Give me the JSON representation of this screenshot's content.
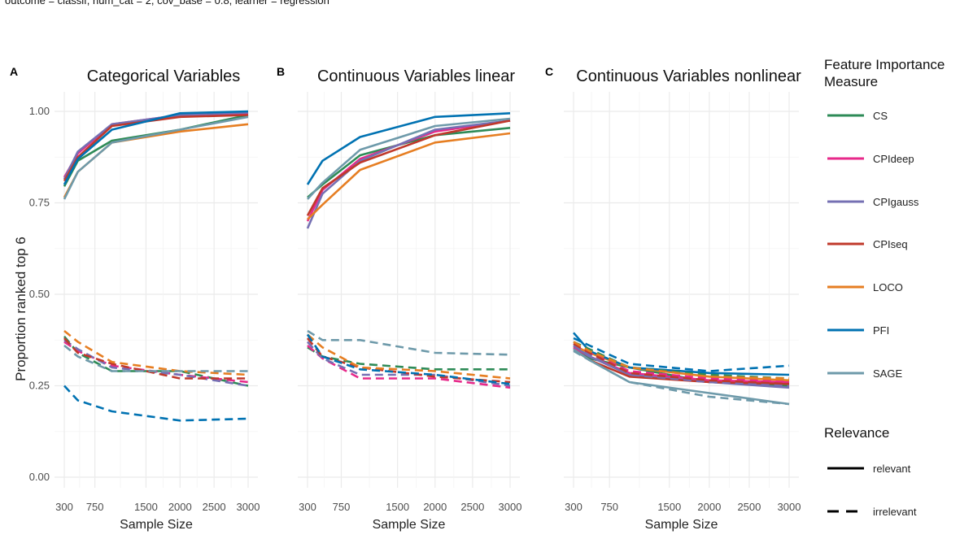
{
  "subtitle": "outcome = classif, num_cat = 2, cov_base = 0.8, learner = regression",
  "y_axis_label": "Proportion ranked top 6",
  "legend": {
    "title_line1": "Feature Importance",
    "title_line2": "Measure",
    "relevance_title": "Relevance"
  },
  "colors": {
    "CS": "#2e8b57",
    "CPIdeep": "#e7298a",
    "CPIgauss": "#7570b3",
    "CPIseq": "#c0392b",
    "LOCO": "#e67e22",
    "PFI": "#0072b2",
    "SAGE": "#6e9aaa"
  },
  "chart_data": {
    "type": "line",
    "x": [
      300,
      500,
      1000,
      2000,
      3000
    ],
    "x_ticks": [
      300,
      750,
      1500,
      2000,
      2500,
      3000
    ],
    "x_tick_labels": [
      "300",
      "750",
      "1500",
      "2000",
      "2500",
      "3000"
    ],
    "xlim": [
      300,
      3000
    ],
    "ylim": [
      0,
      1
    ],
    "y_ticks": [
      0,
      0.25,
      0.5,
      0.75,
      1.0
    ],
    "y_tick_labels": [
      "0.00",
      "0.25",
      "0.50",
      "0.75",
      "1.00"
    ],
    "xlabel": "Sample Size",
    "ylabel": "Proportion ranked top 6",
    "measures": [
      "CS",
      "CPIdeep",
      "CPIgauss",
      "CPIseq",
      "LOCO",
      "PFI",
      "SAGE"
    ],
    "relevance_levels": [
      "relevant",
      "irrelevant"
    ],
    "panels": [
      {
        "letter": "A",
        "title": "Categorical Variables",
        "series": [
          {
            "measure": "CS",
            "relevance": "relevant",
            "values": [
              0.795,
              0.865,
              0.92,
              0.95,
              0.99
            ]
          },
          {
            "measure": "CPIdeep",
            "relevance": "relevant",
            "values": [
              0.82,
              0.885,
              0.965,
              0.99,
              0.995
            ]
          },
          {
            "measure": "CPIgauss",
            "relevance": "relevant",
            "values": [
              0.815,
              0.89,
              0.965,
              0.99,
              0.997
            ]
          },
          {
            "measure": "CPIseq",
            "relevance": "relevant",
            "values": [
              0.81,
              0.875,
              0.96,
              0.985,
              0.99
            ]
          },
          {
            "measure": "LOCO",
            "relevance": "relevant",
            "values": [
              0.765,
              0.835,
              0.915,
              0.945,
              0.965
            ]
          },
          {
            "measure": "PFI",
            "relevance": "relevant",
            "values": [
              0.8,
              0.87,
              0.95,
              0.995,
              1.0
            ]
          },
          {
            "measure": "SAGE",
            "relevance": "relevant",
            "values": [
              0.76,
              0.835,
              0.915,
              0.95,
              0.985
            ]
          },
          {
            "measure": "CS",
            "relevance": "irrelevant",
            "values": [
              0.385,
              0.34,
              0.29,
              0.29,
              0.25
            ]
          },
          {
            "measure": "CPIdeep",
            "relevance": "irrelevant",
            "values": [
              0.37,
              0.345,
              0.305,
              0.28,
              0.26
            ]
          },
          {
            "measure": "CPIgauss",
            "relevance": "irrelevant",
            "values": [
              0.375,
              0.35,
              0.3,
              0.28,
              0.25
            ]
          },
          {
            "measure": "CPIseq",
            "relevance": "irrelevant",
            "values": [
              0.38,
              0.34,
              0.31,
              0.27,
              0.27
            ]
          },
          {
            "measure": "LOCO",
            "relevance": "irrelevant",
            "values": [
              0.4,
              0.37,
              0.315,
              0.29,
              0.28
            ]
          },
          {
            "measure": "PFI",
            "relevance": "irrelevant",
            "values": [
              0.25,
              0.21,
              0.18,
              0.155,
              0.16
            ]
          },
          {
            "measure": "SAGE",
            "relevance": "irrelevant",
            "values": [
              0.36,
              0.33,
              0.29,
              0.29,
              0.29
            ]
          }
        ]
      },
      {
        "letter": "B",
        "title": "Continuous Variables linear",
        "series": [
          {
            "measure": "CS",
            "relevance": "relevant",
            "values": [
              0.765,
              0.8,
              0.88,
              0.935,
              0.955
            ]
          },
          {
            "measure": "CPIdeep",
            "relevance": "relevant",
            "values": [
              0.7,
              0.785,
              0.87,
              0.945,
              0.975
            ]
          },
          {
            "measure": "CPIgauss",
            "relevance": "relevant",
            "values": [
              0.68,
              0.775,
              0.865,
              0.95,
              0.975
            ]
          },
          {
            "measure": "CPIseq",
            "relevance": "relevant",
            "values": [
              0.715,
              0.79,
              0.86,
              0.935,
              0.975
            ]
          },
          {
            "measure": "LOCO",
            "relevance": "relevant",
            "values": [
              0.705,
              0.745,
              0.84,
              0.915,
              0.94
            ]
          },
          {
            "measure": "PFI",
            "relevance": "relevant",
            "values": [
              0.8,
              0.865,
              0.93,
              0.985,
              0.995
            ]
          },
          {
            "measure": "SAGE",
            "relevance": "relevant",
            "values": [
              0.76,
              0.805,
              0.895,
              0.96,
              0.98
            ]
          },
          {
            "measure": "CS",
            "relevance": "irrelevant",
            "values": [
              0.355,
              0.33,
              0.31,
              0.295,
              0.295
            ]
          },
          {
            "measure": "CPIdeep",
            "relevance": "irrelevant",
            "values": [
              0.36,
              0.325,
              0.27,
              0.27,
              0.245
            ]
          },
          {
            "measure": "CPIgauss",
            "relevance": "irrelevant",
            "values": [
              0.37,
              0.325,
              0.28,
              0.28,
              0.25
            ]
          },
          {
            "measure": "CPIseq",
            "relevance": "irrelevant",
            "values": [
              0.38,
              0.33,
              0.3,
              0.275,
              0.26
            ]
          },
          {
            "measure": "LOCO",
            "relevance": "irrelevant",
            "values": [
              0.39,
              0.355,
              0.3,
              0.29,
              0.27
            ]
          },
          {
            "measure": "PFI",
            "relevance": "irrelevant",
            "values": [
              0.39,
              0.33,
              0.295,
              0.28,
              0.255
            ]
          },
          {
            "measure": "SAGE",
            "relevance": "irrelevant",
            "values": [
              0.4,
              0.375,
              0.375,
              0.34,
              0.335
            ]
          }
        ]
      },
      {
        "letter": "C",
        "title": "Continuous Variables nonlinear",
        "series": [
          {
            "measure": "CS",
            "relevance": "relevant",
            "values": [
              0.355,
              0.325,
              0.3,
              0.26,
              0.25
            ]
          },
          {
            "measure": "CPIdeep",
            "relevance": "relevant",
            "values": [
              0.355,
              0.33,
              0.285,
              0.265,
              0.26
            ]
          },
          {
            "measure": "CPIgauss",
            "relevance": "relevant",
            "values": [
              0.36,
              0.33,
              0.28,
              0.26,
              0.245
            ]
          },
          {
            "measure": "CPIseq",
            "relevance": "relevant",
            "values": [
              0.35,
              0.32,
              0.275,
              0.26,
              0.255
            ]
          },
          {
            "measure": "LOCO",
            "relevance": "relevant",
            "values": [
              0.36,
              0.34,
              0.3,
              0.275,
              0.265
            ]
          },
          {
            "measure": "PFI",
            "relevance": "relevant",
            "values": [
              0.395,
              0.345,
              0.3,
              0.285,
              0.28
            ]
          },
          {
            "measure": "SAGE",
            "relevance": "relevant",
            "values": [
              0.35,
              0.32,
              0.26,
              0.23,
              0.2
            ]
          },
          {
            "measure": "CS",
            "relevance": "irrelevant",
            "values": [
              0.37,
              0.35,
              0.3,
              0.28,
              0.27
            ]
          },
          {
            "measure": "CPIdeep",
            "relevance": "irrelevant",
            "values": [
              0.36,
              0.34,
              0.29,
              0.27,
              0.26
            ]
          },
          {
            "measure": "CPIgauss",
            "relevance": "irrelevant",
            "values": [
              0.36,
              0.335,
              0.28,
              0.26,
              0.25
            ]
          },
          {
            "measure": "CPIseq",
            "relevance": "irrelevant",
            "values": [
              0.365,
              0.34,
              0.285,
              0.265,
              0.255
            ]
          },
          {
            "measure": "LOCO",
            "relevance": "irrelevant",
            "values": [
              0.37,
              0.345,
              0.3,
              0.275,
              0.27
            ]
          },
          {
            "measure": "PFI",
            "relevance": "irrelevant",
            "values": [
              0.38,
              0.36,
              0.31,
              0.29,
              0.305
            ]
          },
          {
            "measure": "SAGE",
            "relevance": "irrelevant",
            "values": [
              0.345,
              0.32,
              0.26,
              0.22,
              0.2
            ]
          }
        ]
      }
    ]
  }
}
